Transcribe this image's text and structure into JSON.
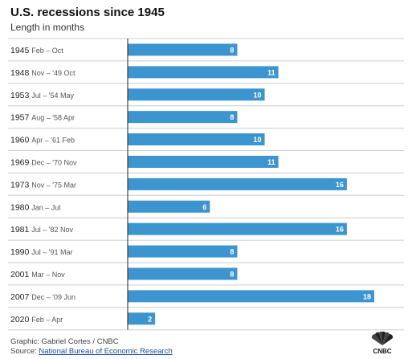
{
  "header": {
    "title": "U.S. recessions since 1945",
    "subtitle": "Length in months"
  },
  "footer": {
    "credit": "Graphic: Gabriel Cortes / CNBC",
    "source_prefix": "Source: ",
    "source_link": "National Bureau of Economic Research"
  },
  "logo": {
    "text": "CNBC"
  },
  "colors": {
    "bar": "#3d95d0",
    "divider": "#cccccc",
    "axis": "#222222",
    "label_main": "#222222",
    "label_detail": "#555555",
    "value_text": "#ffffff"
  },
  "chart_data": {
    "type": "bar",
    "orientation": "horizontal",
    "title": "U.S. recessions since 1945",
    "subtitle": "Length in months",
    "categories": [
      {
        "year": "1945",
        "period": "Feb – Oct"
      },
      {
        "year": "1948",
        "period": "Nov – '49 Oct"
      },
      {
        "year": "1953",
        "period": "Jul – '54 May"
      },
      {
        "year": "1957",
        "period": "Aug – '58 Apr"
      },
      {
        "year": "1960",
        "period": "Apr – '61 Feb"
      },
      {
        "year": "1969",
        "period": "Dec – '70 Nov"
      },
      {
        "year": "1973",
        "period": "Nov – '75 Mar"
      },
      {
        "year": "1980",
        "period": "Jan – Jul"
      },
      {
        "year": "1981",
        "period": "Jul – '82 Nov"
      },
      {
        "year": "1990",
        "period": "Jul – '91 Mar"
      },
      {
        "year": "2001",
        "period": "Mar – Nov"
      },
      {
        "year": "2007",
        "period": "Dec – '09 Jun"
      },
      {
        "year": "2020",
        "period": "Feb – Apr"
      }
    ],
    "values": [
      8,
      11,
      10,
      8,
      10,
      11,
      16,
      6,
      16,
      8,
      8,
      18,
      2
    ],
    "xlim": [
      0,
      18
    ],
    "data_labels": true,
    "grid": false
  }
}
